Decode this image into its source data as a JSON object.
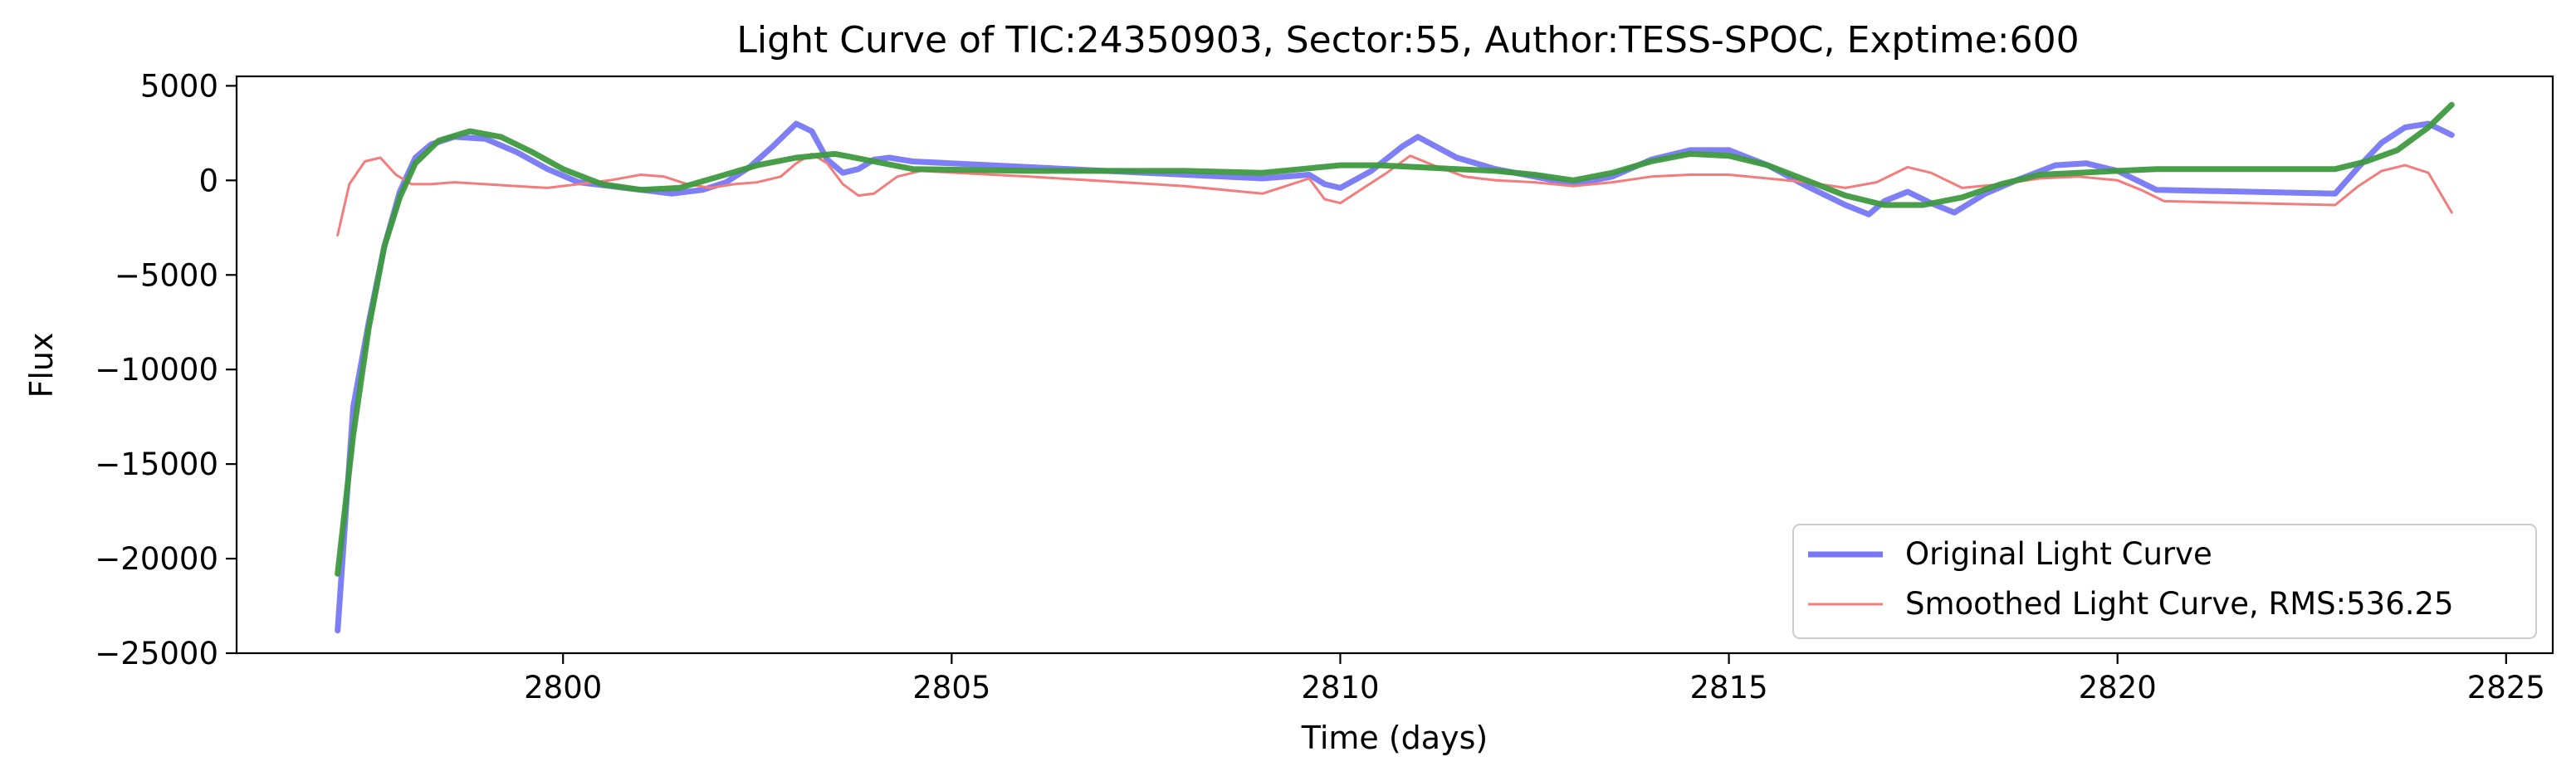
{
  "chart_data": {
    "type": "line",
    "title": "Light Curve of TIC:24350903, Sector:55, Author:TESS-SPOC, Exptime:600",
    "xlabel": "Time (days)",
    "ylabel": "Flux",
    "xlim": [
      2795.8,
      2825.6
    ],
    "ylim": [
      -25000,
      5500
    ],
    "xticks": [
      2800,
      2805,
      2810,
      2815,
      2820,
      2825
    ],
    "yticks": [
      5000,
      0,
      -5000,
      -10000,
      -15000,
      -20000,
      -25000
    ],
    "ytick_labels": [
      "5000",
      "0",
      "−5000",
      "−10000",
      "−15000",
      "−20000",
      "−25000"
    ],
    "grid": false,
    "legend_position": "lower-right",
    "series": [
      {
        "name": "Original Light Curve",
        "color": "#7777f7",
        "x": [
          2797.1,
          2797.3,
          2797.5,
          2797.7,
          2797.9,
          2798.1,
          2798.3,
          2798.6,
          2799.0,
          2799.4,
          2799.8,
          2800.2,
          2800.6,
          2801.0,
          2801.4,
          2801.8,
          2802.1,
          2802.4,
          2802.7,
          2803.0,
          2803.2,
          2803.4,
          2803.6,
          2803.8,
          2804.0,
          2804.2,
          2804.5,
          2806.0,
          2808.0,
          2809.0,
          2809.3,
          2809.6,
          2809.8,
          2810.0,
          2810.4,
          2810.8,
          2811.0,
          2811.5,
          2812.0,
          2812.5,
          2813.0,
          2813.5,
          2814.0,
          2814.5,
          2815.0,
          2815.5,
          2816.0,
          2816.5,
          2816.8,
          2817.0,
          2817.3,
          2817.6,
          2817.9,
          2818.3,
          2818.7,
          2819.2,
          2819.6,
          2820.0,
          2820.5,
          2822.8,
          2823.1,
          2823.4,
          2823.7,
          2824.0,
          2824.3
        ],
        "y": [
          -23800,
          -12000,
          -7500,
          -3500,
          -600,
          1200,
          1900,
          2300,
          2200,
          1500,
          600,
          -100,
          -300,
          -500,
          -700,
          -500,
          -100,
          700,
          1800,
          3000,
          2600,
          1100,
          400,
          600,
          1100,
          1200,
          1000,
          700,
          300,
          100,
          200,
          300,
          -200,
          -400,
          500,
          1800,
          2300,
          1200,
          600,
          200,
          -200,
          200,
          1100,
          1600,
          1600,
          800,
          -300,
          -1300,
          -1800,
          -1100,
          -600,
          -1200,
          -1700,
          -700,
          0,
          800,
          900,
          500,
          -500,
          -700,
          700,
          2000,
          2800,
          3000,
          2400
        ]
      },
      {
        "name": "Smoothed Light Curve, RMS:536.25",
        "color": "#f37c7c",
        "x": [
          2797.1,
          2797.25,
          2797.45,
          2797.65,
          2797.85,
          2798.05,
          2798.3,
          2798.6,
          2799.0,
          2799.4,
          2799.8,
          2800.2,
          2800.6,
          2801.0,
          2801.3,
          2801.6,
          2801.9,
          2802.2,
          2802.5,
          2802.8,
          2803.0,
          2803.2,
          2803.4,
          2803.6,
          2803.8,
          2804.0,
          2804.3,
          2804.6,
          2806.0,
          2808.0,
          2809.0,
          2809.3,
          2809.6,
          2809.8,
          2810.0,
          2810.3,
          2810.6,
          2810.9,
          2811.2,
          2811.6,
          2812.0,
          2812.5,
          2813.0,
          2813.5,
          2814.0,
          2814.5,
          2815.0,
          2815.5,
          2816.0,
          2816.5,
          2816.9,
          2817.3,
          2817.6,
          2818.0,
          2818.5,
          2819.0,
          2819.5,
          2820.0,
          2820.3,
          2820.6,
          2822.8,
          2823.1,
          2823.4,
          2823.7,
          2824.0,
          2824.3
        ],
        "y": [
          -2900,
          -200,
          1000,
          1200,
          300,
          -200,
          -200,
          -100,
          -200,
          -300,
          -400,
          -200,
          0,
          300,
          200,
          -200,
          -400,
          -200,
          -100,
          200,
          900,
          1400,
          900,
          -200,
          -800,
          -700,
          200,
          500,
          200,
          -300,
          -700,
          -300,
          100,
          -1000,
          -1200,
          -400,
          400,
          1300,
          800,
          200,
          0,
          -100,
          -300,
          -100,
          200,
          300,
          300,
          100,
          -100,
          -400,
          -100,
          700,
          400,
          -400,
          -200,
          100,
          200,
          0,
          -500,
          -1100,
          -1300,
          -300,
          500,
          800,
          400,
          -1700
        ]
      },
      {
        "name": "",
        "color": "#3f9a3f",
        "x": [
          2797.1,
          2797.3,
          2797.5,
          2797.7,
          2797.9,
          2798.1,
          2798.4,
          2798.8,
          2799.2,
          2799.6,
          2800.0,
          2800.5,
          2801.0,
          2801.5,
          2802.0,
          2802.5,
          2803.0,
          2803.5,
          2804.0,
          2804.5,
          2806.0,
          2808.0,
          2809.0,
          2809.5,
          2810.0,
          2810.5,
          2811.0,
          2811.5,
          2812.0,
          2812.5,
          2813.0,
          2813.5,
          2814.0,
          2814.5,
          2815.0,
          2815.5,
          2816.0,
          2816.5,
          2817.0,
          2817.5,
          2818.0,
          2818.5,
          2819.0,
          2819.5,
          2820.0,
          2820.5,
          2822.8,
          2823.2,
          2823.6,
          2824.0,
          2824.3
        ],
        "y": [
          -20800,
          -13500,
          -7800,
          -3500,
          -900,
          900,
          2100,
          2600,
          2300,
          1500,
          600,
          -200,
          -500,
          -400,
          200,
          800,
          1200,
          1400,
          1000,
          600,
          500,
          500,
          400,
          600,
          800,
          800,
          700,
          600,
          500,
          300,
          0,
          400,
          1000,
          1400,
          1300,
          800,
          0,
          -800,
          -1300,
          -1300,
          -900,
          -200,
          300,
          400,
          500,
          600,
          600,
          1000,
          1600,
          2800,
          4000
        ]
      }
    ]
  }
}
